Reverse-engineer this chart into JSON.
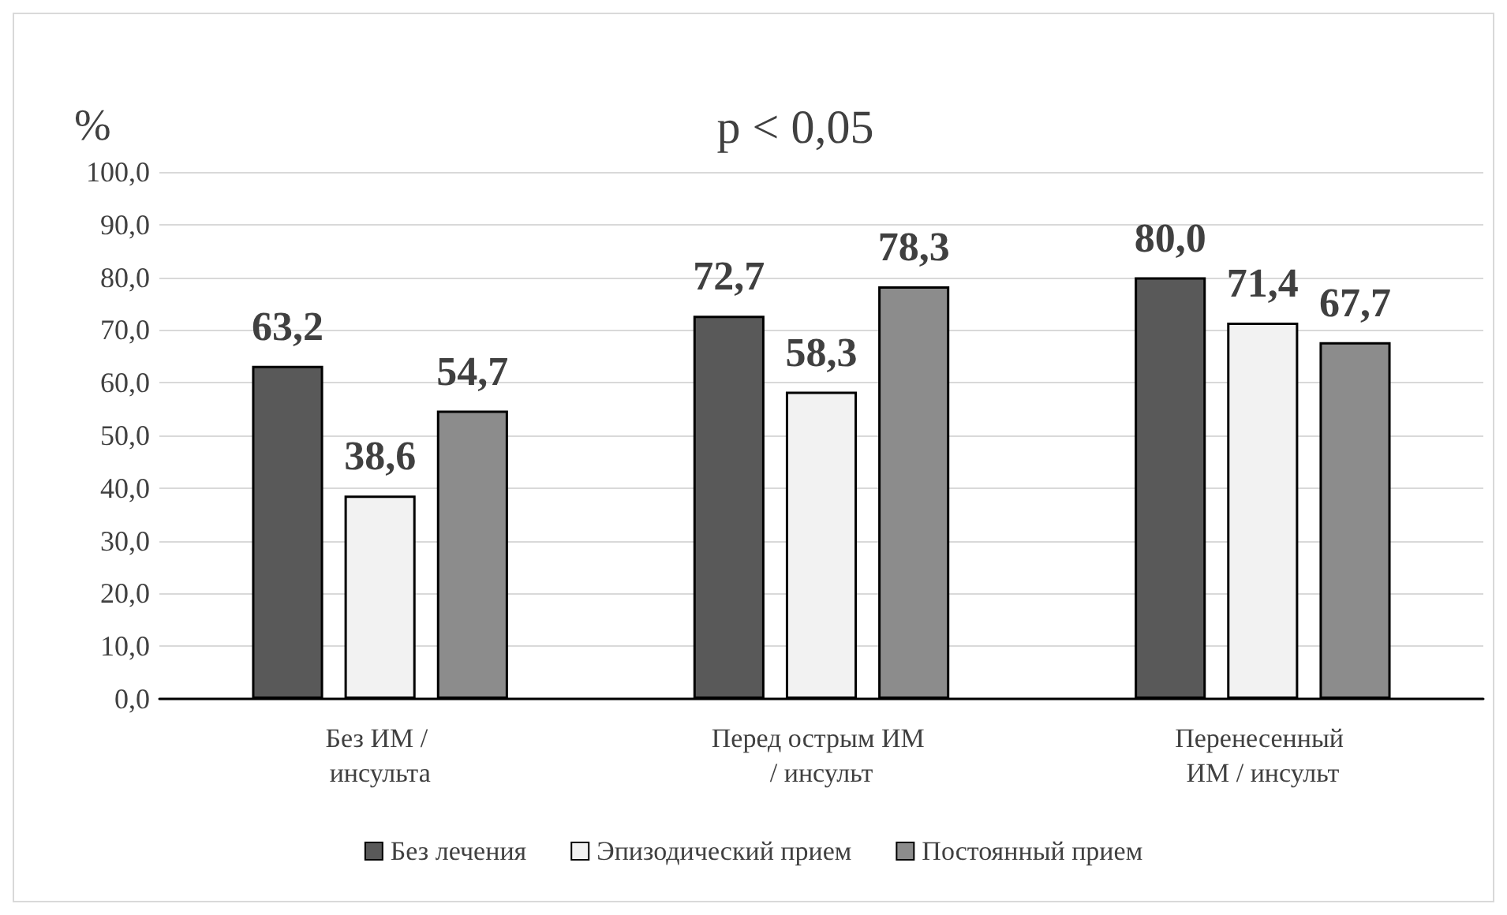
{
  "chart_data": {
    "type": "bar",
    "title": "p < 0,05",
    "ylabel": "%",
    "categories": [
      "Без ИМ / инсульта",
      "Перед острым ИМ / инсульт",
      "Перенесенный ИМ / инсульт"
    ],
    "series": [
      {
        "name": "Без лечения",
        "color": "#595959",
        "values": [
          63.2,
          72.7,
          80.0
        ],
        "value_labels": [
          "63,2",
          "72,7",
          "80,0"
        ]
      },
      {
        "name": "Эпизодический прием",
        "color": "#f2f2f2",
        "values": [
          38.6,
          58.3,
          71.4
        ],
        "value_labels": [
          "38,6",
          "58,3",
          "71,4"
        ]
      },
      {
        "name": "Постоянный прием",
        "color": "#8c8c8c",
        "values": [
          54.7,
          78.3,
          67.7
        ],
        "value_labels": [
          "54,7",
          "78,3",
          "67,7"
        ]
      }
    ],
    "ylim": [
      0,
      100
    ],
    "yticks": [
      {
        "value": 0,
        "label": "0,0"
      },
      {
        "value": 10,
        "label": "10,0"
      },
      {
        "value": 20,
        "label": "20,0"
      },
      {
        "value": 30,
        "label": "30,0"
      },
      {
        "value": 40,
        "label": "40,0"
      },
      {
        "value": 50,
        "label": "50,0"
      },
      {
        "value": 60,
        "label": "60,0"
      },
      {
        "value": 70,
        "label": "70,0"
      },
      {
        "value": 80,
        "label": "80,0"
      },
      {
        "value": 90,
        "label": "90,0"
      },
      {
        "value": 100,
        "label": "100,0"
      }
    ],
    "grid": "y",
    "legend": "bottom"
  }
}
